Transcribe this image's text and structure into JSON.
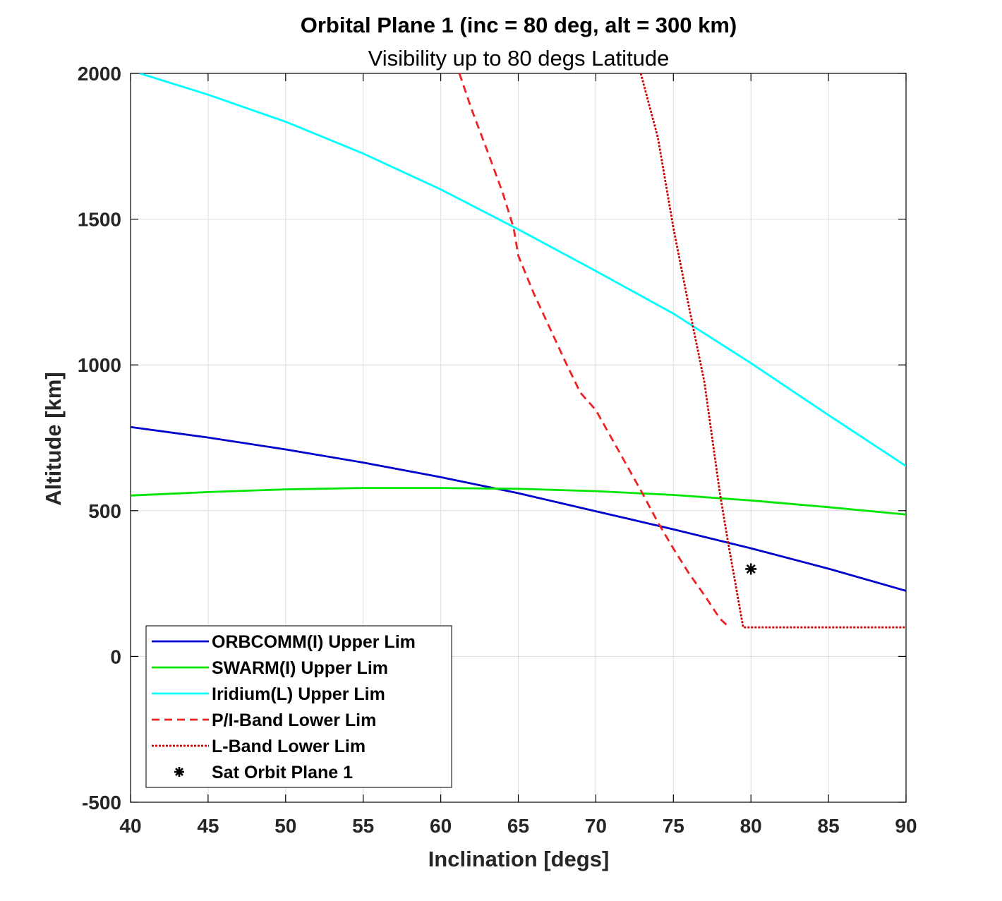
{
  "chart_data": {
    "type": "line",
    "title": "Orbital Plane 1 (inc = 80 deg, alt = 300 km)",
    "subtitle": "Visibility up to 80 degs Latitude",
    "xlabel": "Inclination [degs]",
    "ylabel": "Altitude [km]",
    "xlim": [
      40,
      90
    ],
    "ylim": [
      -500,
      2000
    ],
    "xticks": [
      40,
      45,
      50,
      55,
      60,
      65,
      70,
      75,
      80,
      85,
      90
    ],
    "yticks": [
      -500,
      0,
      500,
      1000,
      1500,
      2000
    ],
    "grid": true,
    "legend_position": "bottom-left",
    "series": [
      {
        "name": "ORBCOMM(I) Upper Lim",
        "color": "#0000cd",
        "style": "solid",
        "x": [
          40,
          45,
          50,
          55,
          60,
          65,
          70,
          75,
          80,
          85,
          90
        ],
        "y": [
          787,
          751,
          710,
          665,
          615,
          560,
          498,
          436,
          371,
          301,
          225
        ]
      },
      {
        "name": "SWARM(I) Upper Lim",
        "color": "#00e600",
        "style": "solid",
        "x": [
          40,
          45,
          50,
          55,
          60,
          65,
          70,
          75,
          80,
          85,
          90
        ],
        "y": [
          552,
          564,
          573,
          578,
          578,
          575,
          567,
          554,
          535,
          512,
          487
        ]
      },
      {
        "name": "Iridium(L) Upper Lim",
        "color": "#00ffff",
        "style": "solid",
        "x": [
          40.6,
          45,
          50,
          55,
          60,
          65,
          70,
          75,
          80,
          85,
          90
        ],
        "y": [
          2000,
          1927,
          1834,
          1725,
          1602,
          1465,
          1322,
          1176,
          1006,
          828,
          653
        ]
      },
      {
        "name": "P/I-Band Lower Lim",
        "color": "#ee2222",
        "style": "dashed",
        "x": [
          61.2,
          62,
          63,
          64,
          64.7,
          65,
          66,
          67,
          68,
          69,
          70,
          71,
          72,
          73,
          74,
          75,
          76,
          77,
          78,
          78.6
        ],
        "y": [
          2000,
          1875,
          1735,
          1590,
          1470,
          1375,
          1245,
          1130,
          1015,
          905,
          845,
          750,
          655,
          560,
          460,
          370,
          285,
          210,
          130,
          100
        ]
      },
      {
        "name": "L-Band Lower Lim",
        "color": "#cc0000",
        "style": "dotted",
        "x": [
          72.9,
          74,
          75,
          76,
          77,
          78,
          78.5,
          79,
          79.5,
          80,
          85,
          90
        ],
        "y": [
          2000,
          1780,
          1470,
          1200,
          940,
          560,
          400,
          250,
          100,
          100,
          100,
          100
        ]
      },
      {
        "name": "Sat Orbit Plane 1",
        "color": "#000000",
        "style": "marker",
        "x": [
          80
        ],
        "y": [
          300
        ]
      }
    ]
  }
}
